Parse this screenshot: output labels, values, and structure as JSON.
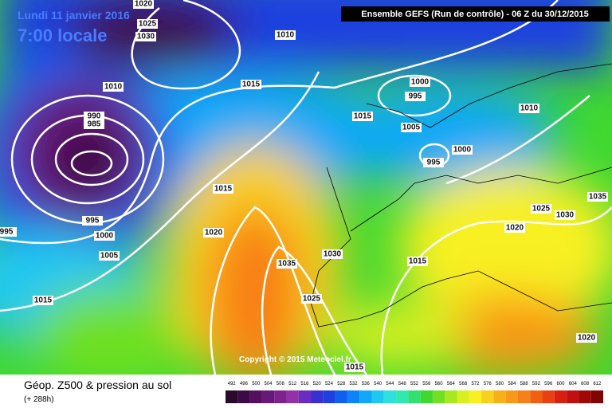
{
  "header": {
    "date": "Lundi 11 janvier 2016",
    "time": "7:00 locale",
    "run": "Ensemble GEFS  (Run de contrôle)  -  06 Z du 30/12/2015",
    "copyright": "Copyright © 2015 Meteociel.fr"
  },
  "caption": {
    "title": "Géop. Z500 & pression au sol",
    "lead": "(+ 288h)"
  },
  "scale": {
    "values": [
      492,
      496,
      500,
      504,
      508,
      512,
      516,
      520,
      524,
      528,
      532,
      536,
      540,
      544,
      548,
      552,
      556,
      560,
      564,
      568,
      572,
      576,
      580,
      584,
      588,
      592,
      596,
      600,
      604,
      608,
      612
    ],
    "colors": [
      "#2a0a2a",
      "#3c0a46",
      "#52105e",
      "#681878",
      "#7e2290",
      "#9430a8",
      "#6a2cc0",
      "#3a30d0",
      "#1e40e0",
      "#1060f0",
      "#0a84f8",
      "#10a8f8",
      "#20c8f0",
      "#30e0e0",
      "#30e8b0",
      "#30e070",
      "#40d830",
      "#70e020",
      "#a8e820",
      "#d8f020",
      "#f8f020",
      "#f8d020",
      "#f8b018",
      "#f89818",
      "#f88018",
      "#f06010",
      "#e84010",
      "#d82010",
      "#c01010",
      "#a00808",
      "#800404"
    ]
  },
  "isobar_labels": [
    1020,
    1025,
    1030,
    1010,
    1010,
    1015,
    1000,
    995,
    1015,
    1005,
    1000,
    995,
    1010,
    990,
    985,
    1015,
    995,
    1000,
    995,
    1005,
    1020,
    1035,
    1030,
    1025,
    1015,
    1020,
    1025,
    1030,
    1035,
    1015,
    1020,
    1015
  ]
}
